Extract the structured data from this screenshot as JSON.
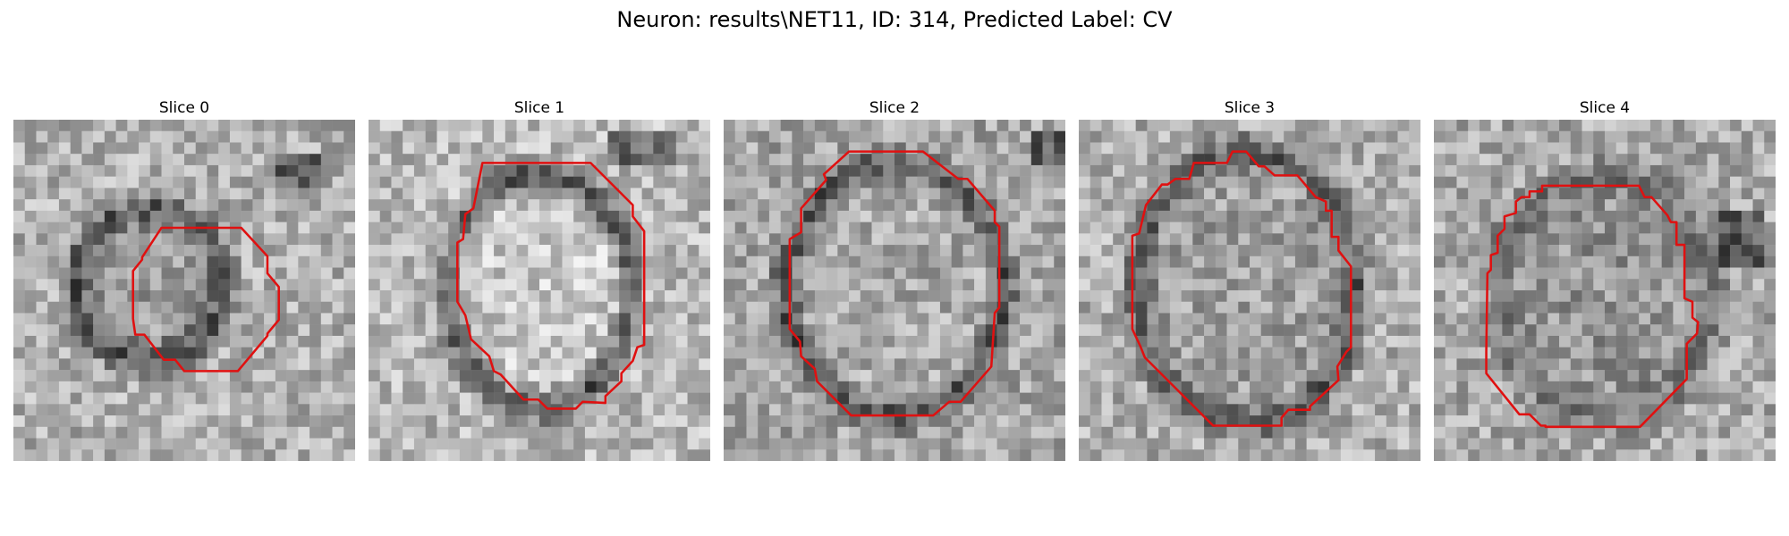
{
  "figure": {
    "title": "Neuron: results\\NET11, ID: 314, Predicted Label: CV",
    "outline_color": "#e01010"
  },
  "panels": [
    {
      "title": "Slice 0",
      "icon": "grayscale-microscopy-image"
    },
    {
      "title": "Slice 1",
      "icon": "grayscale-microscopy-image"
    },
    {
      "title": "Slice 2",
      "icon": "grayscale-microscopy-image"
    },
    {
      "title": "Slice 3",
      "icon": "grayscale-microscopy-image"
    },
    {
      "title": "Slice 4",
      "icon": "grayscale-microscopy-image"
    }
  ]
}
